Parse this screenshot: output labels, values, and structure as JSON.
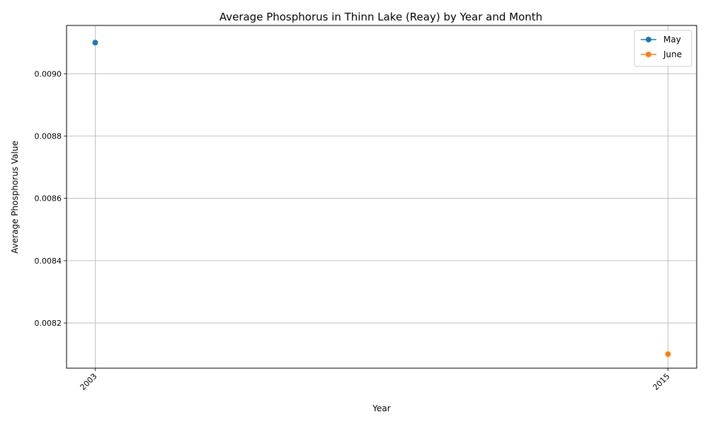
{
  "chart_data": {
    "type": "line",
    "title": "Average Phosphorus in Thinn Lake (Reay) by Year and Month",
    "xlabel": "Year",
    "ylabel": "Average Phosphorus Value",
    "x_ticks": [
      "2003",
      "2015"
    ],
    "x_range": [
      2002.4,
      2015.6
    ],
    "ylim": [
      0.008055,
      0.009155
    ],
    "y_ticks": [
      "0.0082",
      "0.0084",
      "0.0086",
      "0.0088",
      "0.0090"
    ],
    "y_tick_values": [
      0.0082,
      0.0084,
      0.0086,
      0.0088,
      0.009
    ],
    "grid": true,
    "legend_position": "top-right",
    "series": [
      {
        "name": "May",
        "color": "#1f77b4",
        "points": [
          {
            "x": 2003,
            "y": 0.0091
          }
        ]
      },
      {
        "name": "June",
        "color": "#ff7f0e",
        "points": [
          {
            "x": 2015,
            "y": 0.0081
          }
        ]
      }
    ]
  }
}
